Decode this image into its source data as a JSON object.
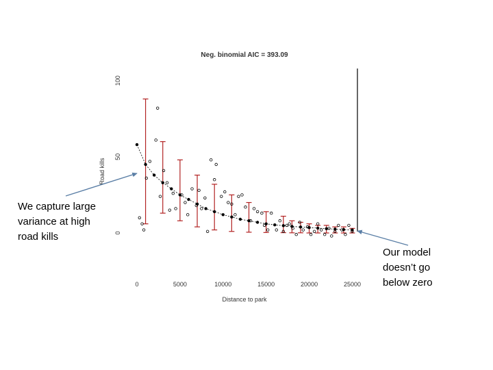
{
  "slide": {
    "callout_left": "We capture large\nvariance at high\nroad kills",
    "callout_right": "Our model\ndoesn’t go\nbelow zero"
  },
  "colors": {
    "fit_line": "#000000",
    "error_bar": "#b22222",
    "observed_point": "#000000",
    "arrow": "#5b7fa6"
  },
  "chart_data": {
    "type": "scatter",
    "title": "Neg. binomial AIC = 393.09",
    "xlabel": "Distance to park",
    "ylabel": "Road kills",
    "xlim": [
      0,
      25600
    ],
    "ylim": [
      0,
      108
    ],
    "x_ticks": [
      0,
      5000,
      10000,
      15000,
      20000,
      25000
    ],
    "y_ticks": [
      0,
      50,
      100
    ],
    "grid": false,
    "legend": "none",
    "vertical_reference_x": 25600,
    "observed": {
      "x": [
        300,
        600,
        800,
        1100,
        1500,
        2200,
        2400,
        2700,
        3100,
        3500,
        3800,
        4200,
        4500,
        5200,
        5600,
        5900,
        6400,
        6900,
        7200,
        7500,
        7900,
        8200,
        8600,
        9000,
        9200,
        9800,
        10200,
        10600,
        11000,
        11400,
        11800,
        12200,
        12600,
        13200,
        13600,
        14000,
        14500,
        14800,
        15200,
        15600,
        16200,
        16600,
        17000,
        17400,
        17700,
        18100,
        18500,
        18900,
        19300,
        19800,
        20200,
        20600,
        21000,
        21400,
        21800,
        22300,
        22600,
        23000,
        23400,
        23800,
        24200,
        24600,
        25000
      ],
      "y": [
        10,
        6,
        2,
        36,
        47,
        61,
        82,
        24,
        41,
        33,
        15,
        26,
        16,
        25,
        20,
        12,
        29,
        18,
        28,
        16,
        23,
        1,
        48,
        35,
        45,
        24,
        27,
        20,
        19,
        12,
        24,
        25,
        17,
        8,
        16,
        14,
        13,
        5,
        2,
        13,
        2,
        8,
        1,
        5,
        6,
        3,
        -1,
        7,
        2,
        4,
        -1,
        1,
        6,
        2,
        -1,
        3,
        -2,
        1,
        5,
        2,
        -1,
        5,
        1
      ]
    },
    "fit": {
      "x": [
        0,
        1000,
        2000,
        3000,
        4000,
        5000,
        6000,
        7000,
        8000,
        9000,
        10000,
        11000,
        12000,
        13000,
        14000,
        15000,
        16000,
        17000,
        18000,
        19000,
        20000,
        21000,
        22000,
        23000,
        24000,
        25000
      ],
      "y": [
        58,
        45,
        38,
        33,
        29,
        25,
        22,
        19,
        16,
        14,
        12,
        10.5,
        9,
        8,
        7,
        6,
        5.3,
        4.8,
        4.3,
        3.9,
        3.5,
        3.2,
        2.8,
        2.5,
        2.2,
        2
      ]
    },
    "error_bars": [
      {
        "x": 1000,
        "low": 6,
        "high": 88
      },
      {
        "x": 3000,
        "low": 13,
        "high": 60
      },
      {
        "x": 5000,
        "low": 8,
        "high": 48
      },
      {
        "x": 7000,
        "low": 4,
        "high": 38
      },
      {
        "x": 9000,
        "low": 2,
        "high": 32
      },
      {
        "x": 11000,
        "low": 1,
        "high": 25
      },
      {
        "x": 13000,
        "low": 0.5,
        "high": 20
      },
      {
        "x": 15000,
        "low": 0.3,
        "high": 14
      },
      {
        "x": 17000,
        "low": 0.2,
        "high": 11
      },
      {
        "x": 18000,
        "low": 0.1,
        "high": 8
      },
      {
        "x": 19000,
        "low": 0.1,
        "high": 7
      },
      {
        "x": 20000,
        "low": 0,
        "high": 6
      },
      {
        "x": 21000,
        "low": 0,
        "high": 5
      },
      {
        "x": 22000,
        "low": 0,
        "high": 5
      },
      {
        "x": 23000,
        "low": 0,
        "high": 4
      },
      {
        "x": 24000,
        "low": 0,
        "high": 4
      },
      {
        "x": 25000,
        "low": 0,
        "high": 3
      }
    ]
  }
}
